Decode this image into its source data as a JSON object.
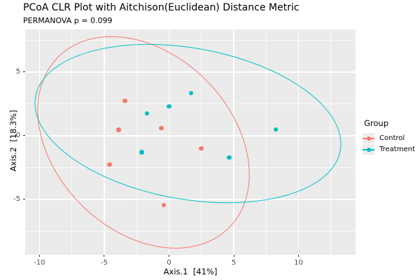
{
  "header": {
    "title": "PCoA CLR Plot with Aitchison(Euclidean) Distance Metric",
    "subtitle": "PERMANOVA p = 0.099"
  },
  "colors": {
    "control": "#F8766D",
    "treatment": "#00BFC4",
    "panel_background": "#EBEBEB",
    "gridline": "#FFFFFF",
    "axis_text": "#4D4D4D"
  },
  "legend": {
    "title": "Group",
    "position": "right",
    "items": [
      {
        "label": "Control",
        "color": "#F8766D"
      },
      {
        "label": "Treatment",
        "color": "#00BFC4"
      }
    ]
  },
  "chart_data": {
    "type": "scatter",
    "title": "PCoA CLR Plot with Aitchison(Euclidean) Distance Metric",
    "subtitle": "PERMANOVA p = 0.099",
    "xlabel": "Axis.1  [41%]",
    "ylabel": "Axis.2  [18.3%]",
    "xlim": [
      -11.1,
      14.4
    ],
    "ylim": [
      -9.35,
      8.35
    ],
    "x_ticks": [
      -10,
      -5,
      0,
      5,
      10
    ],
    "y_ticks": [
      5,
      0,
      -5
    ],
    "grid": "major and minor, white on gray panel",
    "legend_position": "right",
    "series": [
      {
        "name": "Control",
        "color": "#F8766D",
        "points": [
          [
            -3.4,
            2.75
          ],
          [
            -3.9,
            0.45
          ],
          [
            -0.6,
            0.6
          ],
          [
            2.5,
            -1.0
          ],
          [
            -4.6,
            -2.25
          ],
          [
            -0.4,
            -5.45
          ]
        ]
      },
      {
        "name": "Treatment",
        "color": "#00BFC4",
        "points": [
          [
            1.7,
            3.35
          ],
          [
            0.0,
            2.3
          ],
          [
            -1.7,
            1.75
          ],
          [
            -2.1,
            -1.3
          ],
          [
            4.65,
            -1.7
          ],
          [
            8.25,
            0.5
          ]
        ]
      }
    ],
    "ellipses": [
      {
        "group": "Control",
        "color": "#F8766D",
        "center": [
          -2.0,
          -0.5
        ],
        "semi_axes_units": [
          9.3,
          6.9
        ],
        "css_rotate_deg": 45
      },
      {
        "group": "Treatment",
        "color": "#00BFC4",
        "center": [
          1.4,
          1.0
        ],
        "semi_axes_units": [
          11.9,
          5.9
        ],
        "css_rotate_deg": 10
      }
    ]
  }
}
